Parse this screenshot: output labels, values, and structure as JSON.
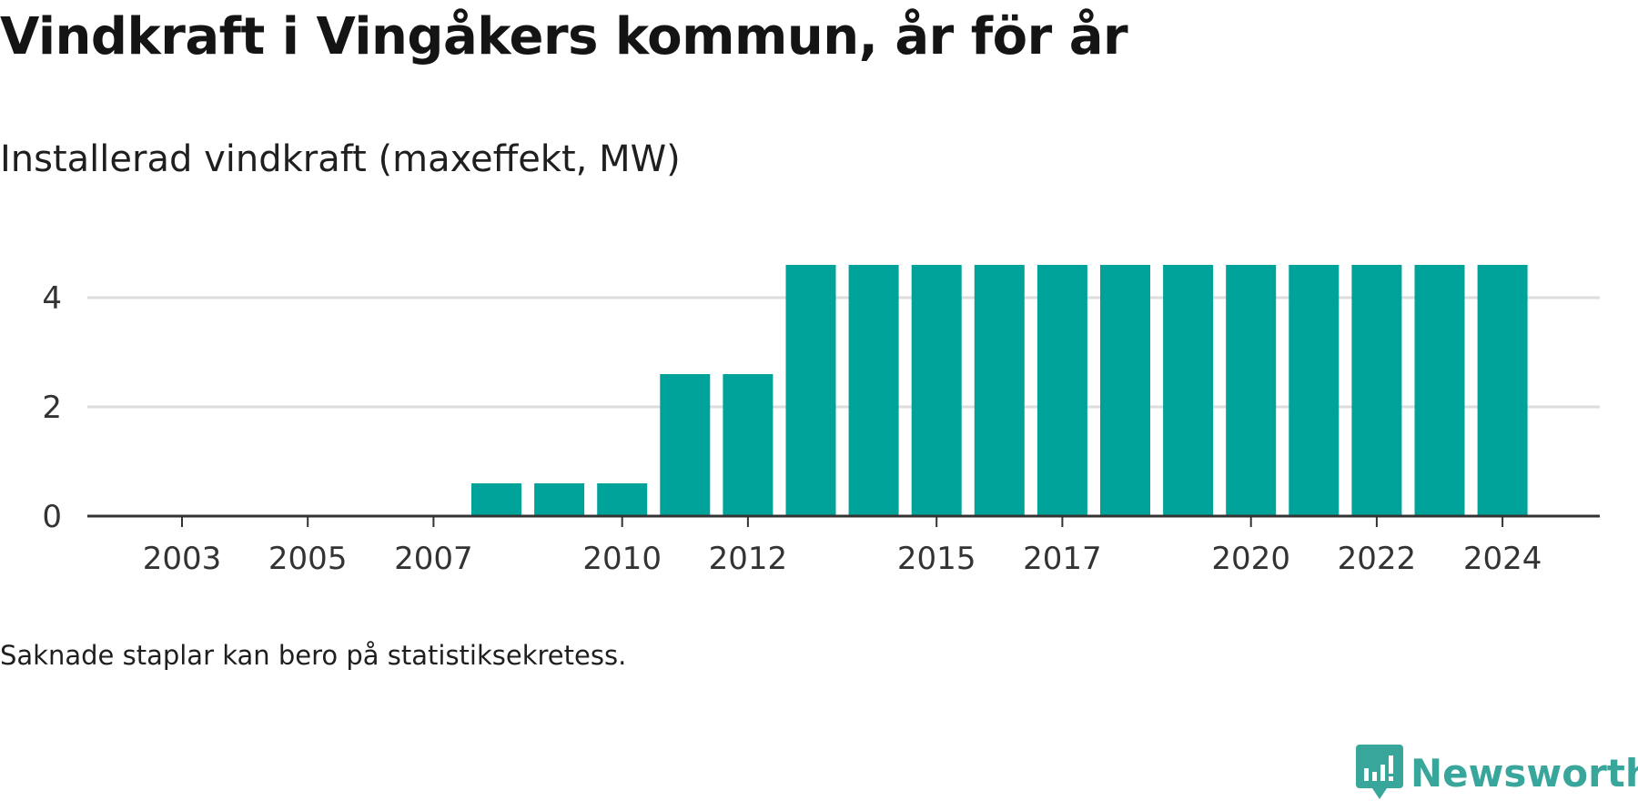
{
  "header": {
    "title": "Vindkraft i Vingåkers kommun, år för år",
    "subtitle": "Installerad vindkraft (maxeffekt, MW)"
  },
  "footer": {
    "note": "Saknade staplar kan bero på statistiksekretess.",
    "brand": "Newsworthy"
  },
  "colors": {
    "bar": "#00a39a",
    "grid": "#dddddd",
    "baseline": "#333333",
    "brand": "#39a69c"
  },
  "icons": {
    "brand_logo": "newsworthy-chart-bubble-icon"
  },
  "chart_data": {
    "type": "bar",
    "x": [
      2003,
      2004,
      2005,
      2006,
      2007,
      2008,
      2009,
      2010,
      2011,
      2012,
      2013,
      2014,
      2015,
      2016,
      2017,
      2018,
      2019,
      2020,
      2021,
      2022,
      2023,
      2024
    ],
    "values": [
      0,
      0,
      0,
      0,
      0,
      0.6,
      0.6,
      0.6,
      2.6,
      2.6,
      4.6,
      4.6,
      4.6,
      4.6,
      4.6,
      4.6,
      4.6,
      4.6,
      4.6,
      4.6,
      4.6,
      4.6
    ],
    "x_tick_labels": [
      "2003",
      "2005",
      "2007",
      "2010",
      "2012",
      "2015",
      "2017",
      "2020",
      "2022",
      "2024"
    ],
    "y_ticks": [
      0,
      2,
      4
    ],
    "ylim": [
      0,
      4.6
    ],
    "grid": true,
    "title": "Vindkraft i Vingåkers kommun, år för år",
    "ylabel": "Installerad vindkraft (maxeffekt, MW)",
    "xlabel": ""
  }
}
